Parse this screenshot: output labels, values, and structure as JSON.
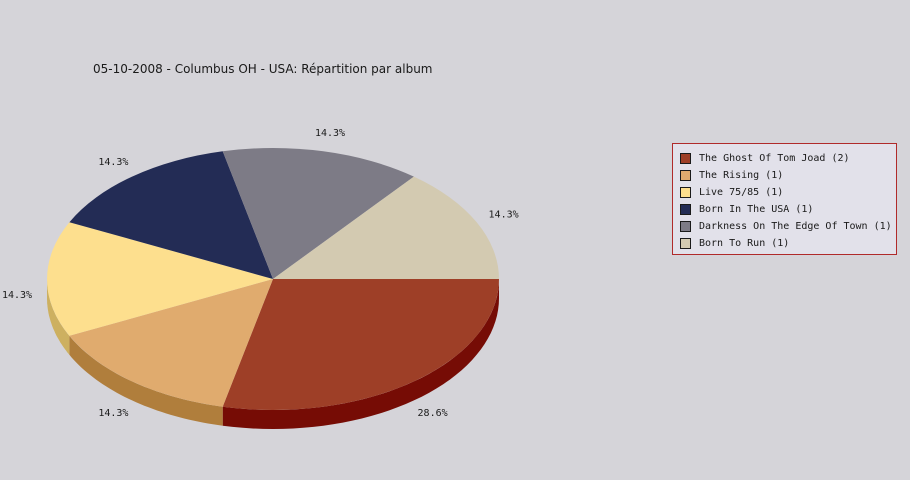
{
  "chart_data": {
    "type": "pie",
    "title": "05-10-2008 - Columbus OH - USA:  Répartition par album",
    "slices": [
      {
        "label": "The Ghost Of Tom Joad (2)",
        "value": 2,
        "percent_label": "28.6%",
        "color": "#9e3f27",
        "side_color": "#760c05"
      },
      {
        "label": "The Rising (1)",
        "value": 1,
        "percent_label": "14.3%",
        "color": "#e0ab6e",
        "side_color": "#b07e3c"
      },
      {
        "label": "Live 75/85 (1)",
        "value": 1,
        "percent_label": "14.3%",
        "color": "#fddf8e",
        "side_color": "#cdb060"
      },
      {
        "label": "Born In The USA (1)",
        "value": 1,
        "percent_label": "14.3%",
        "color": "#232c55",
        "side_color": "#121838"
      },
      {
        "label": "Darkness On The Edge Of Town (1)",
        "value": 1,
        "percent_label": "14.3%",
        "color": "#7d7b86",
        "side_color": "#55535c"
      },
      {
        "label": "Born To Run (1)",
        "value": 1,
        "percent_label": "14.3%",
        "color": "#d3cab1",
        "side_color": "#a69c82"
      }
    ],
    "legend_placement": "right"
  }
}
